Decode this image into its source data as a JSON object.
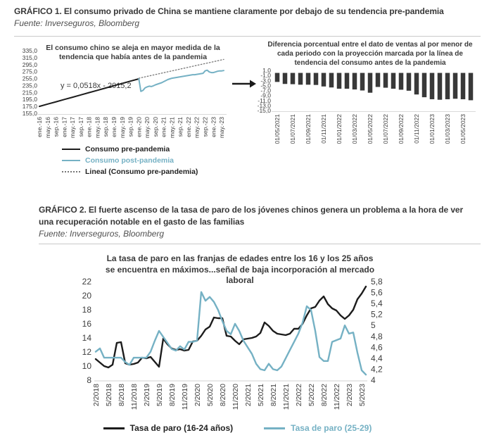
{
  "figure1": {
    "title": "GRÁFICO 1. El consumo privado de China se mantiene claramente por debajo de su tendencia pre-pandemia",
    "source": "Fuente: Inverseguros, Bloomberg"
  },
  "figure2": {
    "title": "GRÁFICO 2. El fuerte ascenso de la tasa de paro de los jóvenes chinos genera un problema a la hora de ver una recuperación notable en el gasto de las familias",
    "source": "Fuente: Inverseguros, Bloomberg"
  },
  "colors": {
    "black_line": "#1c1c1c",
    "blue_line": "#75b1c4",
    "trend_dotted": "#777777",
    "bar": "#383838",
    "tick_text": "#3d3d3d",
    "baseline": "#d9d9d9"
  },
  "chart_data": [
    {
      "type": "line",
      "title": "El consumo chino se aleja en mayor medida de la tendencia que había antes de la pandemia",
      "annotation": "y = 0,0518x - 2015,2",
      "x_labels": [
        "ene.-16",
        "may.-16",
        "sep.-16",
        "ene.-17",
        "may.-17",
        "sep.-17",
        "ene.-18",
        "may.-18",
        "sep.-18",
        "ene.-19",
        "may.-19",
        "sep.-19",
        "ene.-20",
        "may.-20",
        "sep.-20",
        "ene.-21",
        "may.-21",
        "sep.-21",
        "ene.-22",
        "may.-22",
        "sep.-22",
        "ene.-23",
        "may.-23"
      ],
      "months_per_label": 4,
      "total_months": 89,
      "ylim": [
        155,
        335
      ],
      "ytick_step": 20,
      "grid": false,
      "legend_position": "bottom-left",
      "series": [
        {
          "name": "Consumo pre-pandemia",
          "color": "#1c1c1c",
          "style": "solid",
          "start_month": 0,
          "step": 4,
          "values": [
            175.0,
            181.6,
            188.2,
            194.8,
            201.4,
            208.0,
            214.6,
            221.2,
            227.8,
            234.4,
            241.0,
            247.6,
            254.2
          ]
        },
        {
          "name": "Consumo post-pandemia",
          "color": "#75b1c4",
          "style": "solid",
          "start_month": 48,
          "step": 1,
          "values": [
            254,
            218,
            221,
            228,
            231,
            233,
            232,
            234,
            237,
            239,
            241,
            243,
            246,
            249,
            252,
            254,
            256,
            257,
            258,
            259,
            260,
            261,
            262,
            263,
            264,
            265,
            266,
            266,
            267,
            268,
            269,
            270,
            277,
            279,
            274,
            272,
            272,
            274,
            276,
            277,
            277,
            278
          ]
        },
        {
          "name": "Lineal (Consumo pre-pandemia)",
          "color": "#777777",
          "style": "dotted",
          "start_month": 48,
          "step": 41,
          "values": [
            256,
            310
          ]
        }
      ]
    },
    {
      "type": "bar",
      "title": "Diferencia porcentual entre el dato de ventas al por menor de cada periodo con la proyección marcada por la línea de tendencia del consumo antes de la pandemia",
      "x_labels": [
        "01/05/2021",
        "01/07/2021",
        "01/09/2021",
        "01/11/2021",
        "01/01/2022",
        "01/03/2022",
        "01/05/2022",
        "01/07/2022",
        "01/09/2022",
        "01/11/2022",
        "01/01/2023",
        "01/03/2023",
        "01/05/2023"
      ],
      "label_every": 2,
      "ylim": [
        -15,
        1
      ],
      "yticks": [
        1,
        -1,
        -3,
        -5,
        -7,
        -9,
        -11,
        -13,
        -15
      ],
      "grid": false,
      "bar_color": "#383838",
      "values": [
        -3.6,
        -4.4,
        -4.5,
        -4.7,
        -4.7,
        -4.8,
        -5.4,
        -5.8,
        -6.3,
        -6.3,
        -6.6,
        -7.0,
        -7.9,
        -5.6,
        -5.9,
        -6.3,
        -6.7,
        -7.1,
        -8.6,
        -9.7,
        -10.5,
        -10.7,
        -10.5,
        -10.3,
        -10.5,
        -10.9
      ]
    },
    {
      "type": "line",
      "title": "La tasa de paro en las franjas de edades entre los 16 y los 25 años se encuentra en máximos...señal de baja incorporación al mercado laboral",
      "x_labels": [
        "2/2018",
        "5/2018",
        "8/2018",
        "11/2018",
        "2/2019",
        "5/2019",
        "8/2019",
        "11/2019",
        "2/2020",
        "5/2020",
        "8/2020",
        "11/2020",
        "2/2021",
        "5/2021",
        "8/2021",
        "11/2021",
        "2/2022",
        "5/2022",
        "8/2022",
        "11/2022",
        "2/2023",
        "5/2023"
      ],
      "months_per_label": 3,
      "total_months": 64,
      "left_ylim": [
        8,
        22
      ],
      "left_tick_step": 2,
      "right_ylim": [
        4,
        5.8
      ],
      "right_tick_step": 0.2,
      "grid": false,
      "legend_position": "bottom-center",
      "series": [
        {
          "name": "Tasa de paro (16-24 años)",
          "color": "#1c1c1c",
          "axis": "left",
          "values": [
            11.0,
            10.5,
            10.0,
            9.8,
            10.2,
            13.3,
            13.4,
            10.4,
            10.2,
            10.3,
            10.5,
            11.2,
            11.1,
            11.3,
            10.6,
            9.9,
            13.9,
            13.1,
            12.5,
            12.3,
            12.4,
            12.2,
            12.3,
            13.5,
            13.6,
            14.3,
            15.2,
            15.6,
            16.9,
            16.8,
            16.8,
            14.3,
            14.2,
            13.6,
            13.1,
            13.8,
            13.9,
            14.0,
            14.2,
            14.7,
            16.2,
            15.7,
            15.0,
            14.6,
            14.5,
            14.4,
            14.6,
            15.3,
            15.3,
            16.0,
            17.2,
            18.2,
            18.4,
            19.3,
            19.9,
            18.8,
            18.2,
            17.9,
            17.2,
            16.7,
            17.2,
            18.0,
            19.5,
            20.3,
            21.3
          ]
        },
        {
          "name": "Tasa de paro (25-29)",
          "color": "#75b1c4",
          "axis": "right",
          "values": [
            4.52,
            4.58,
            4.41,
            4.41,
            4.41,
            4.41,
            4.41,
            4.33,
            4.28,
            4.41,
            4.41,
            4.41,
            4.41,
            4.52,
            4.72,
            4.9,
            4.79,
            4.68,
            4.57,
            4.54,
            4.62,
            4.56,
            4.7,
            4.7,
            4.72,
            5.61,
            5.45,
            5.52,
            5.43,
            5.28,
            5.08,
            4.9,
            4.84,
            5.03,
            4.9,
            4.72,
            4.6,
            4.48,
            4.3,
            4.2,
            4.18,
            4.3,
            4.2,
            4.18,
            4.25,
            4.4,
            4.55,
            4.7,
            4.85,
            5.05,
            5.35,
            5.28,
            4.9,
            4.42,
            4.35,
            4.35,
            4.7,
            4.73,
            4.76,
            5.0,
            4.85,
            4.87,
            4.5,
            4.18,
            4.1
          ]
        }
      ]
    }
  ]
}
